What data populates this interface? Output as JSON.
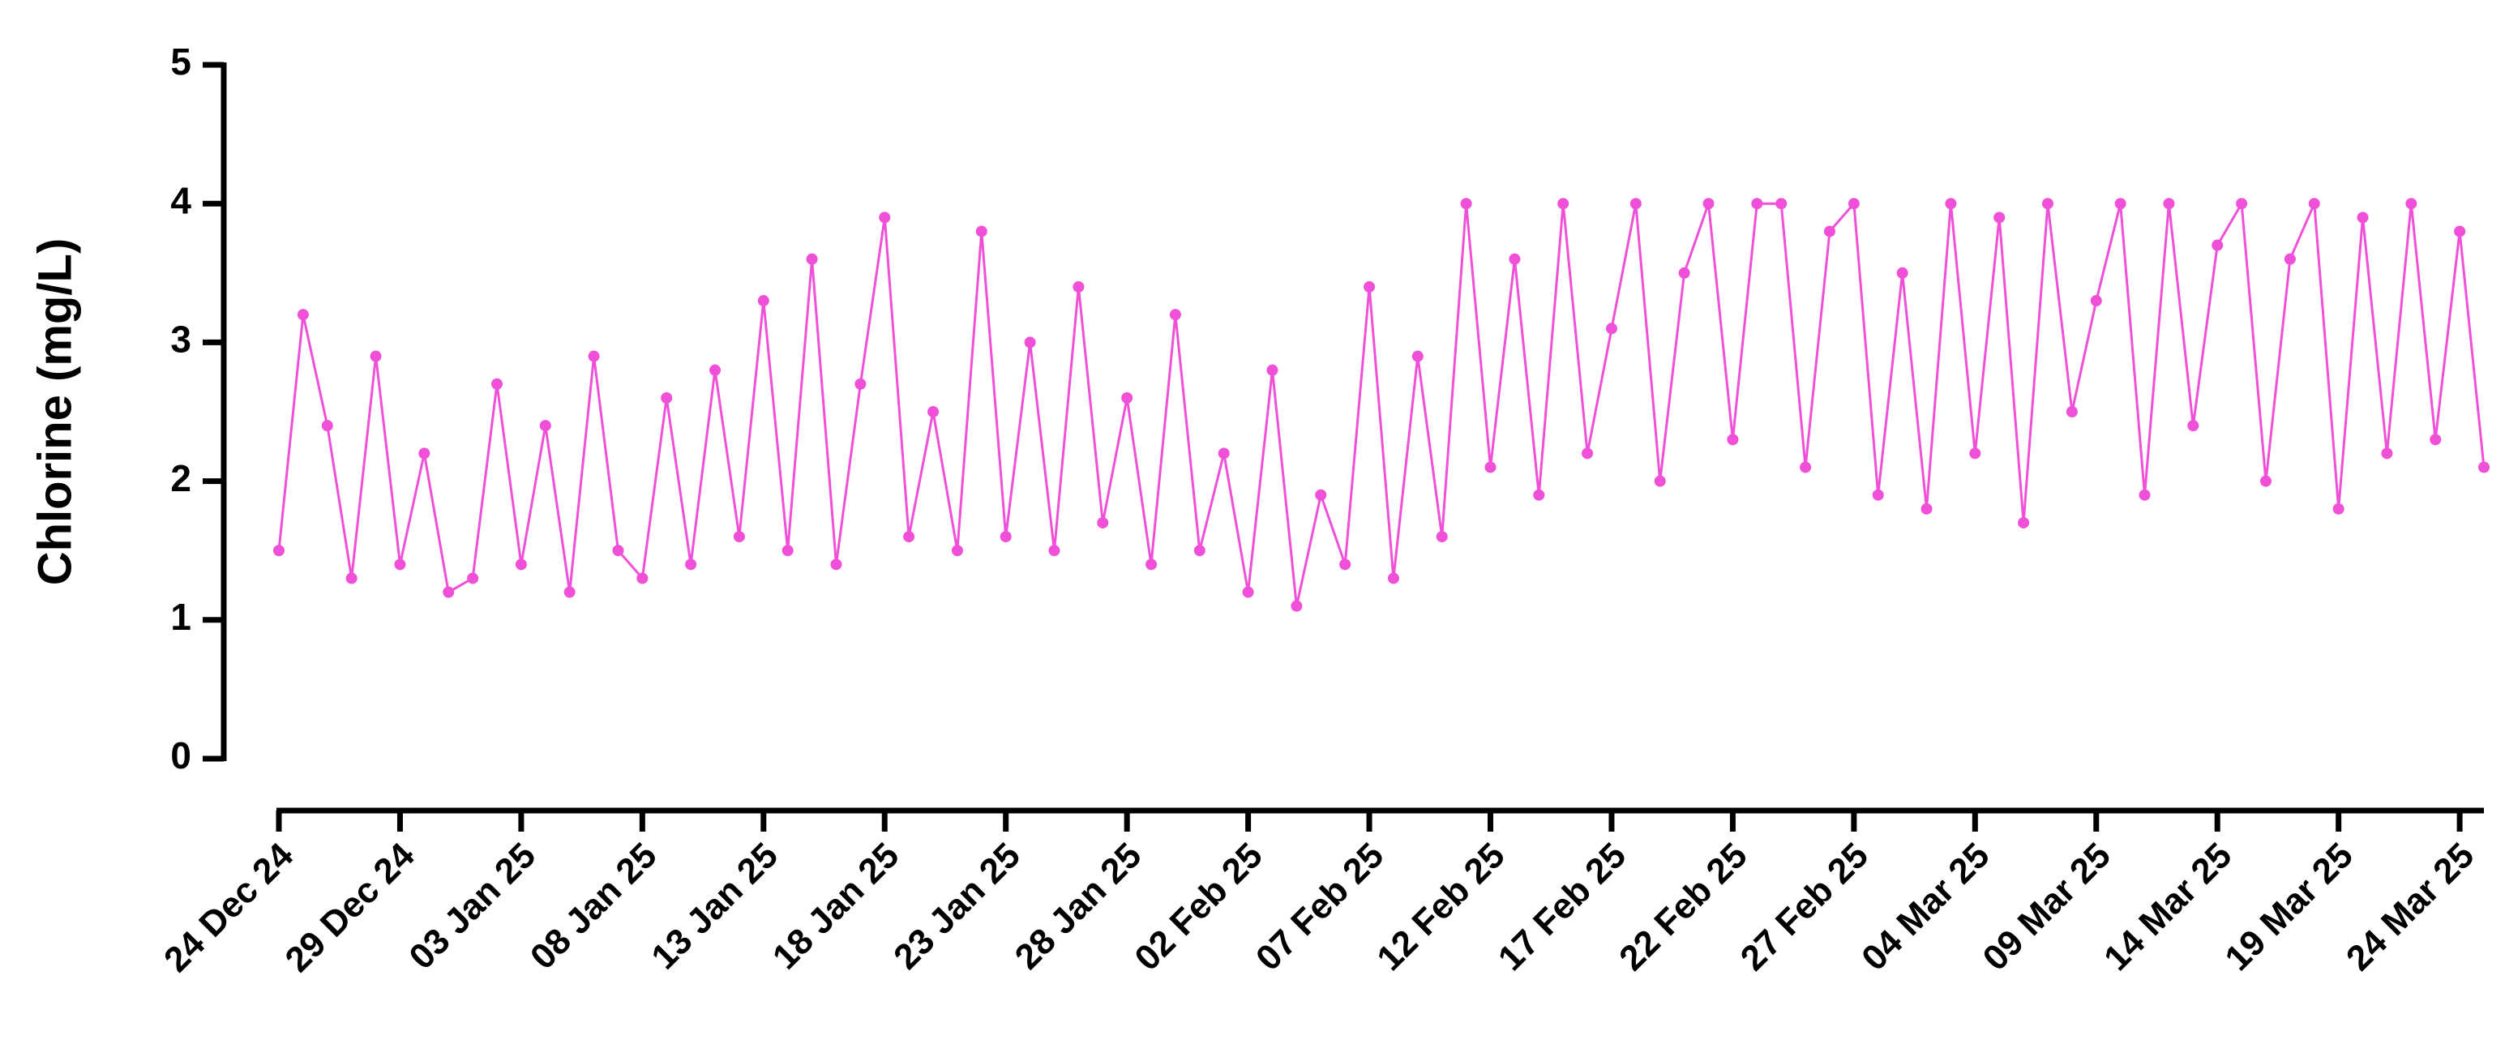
{
  "chart_data": {
    "type": "line",
    "y_label": "Chlorine (mg/L)",
    "color": "#f050d8",
    "x": [
      "24 Dec 24",
      "25 Dec 24",
      "26 Dec 24",
      "27 Dec 24",
      "28 Dec 24",
      "29 Dec 24",
      "30 Dec 24",
      "31 Dec 24",
      "01 Jan 25",
      "02 Jan 25",
      "03 Jan 25",
      "04 Jan 25",
      "05 Jan 25",
      "06 Jan 25",
      "07 Jan 25",
      "08 Jan 25",
      "09 Jan 25",
      "10 Jan 25",
      "11 Jan 25",
      "12 Jan 25",
      "13 Jan 25",
      "14 Jan 25",
      "15 Jan 25",
      "16 Jan 25",
      "17 Jan 25",
      "18 Jan 25",
      "19 Jan 25",
      "20 Jan 25",
      "21 Jan 25",
      "22 Jan 25",
      "23 Jan 25",
      "24 Jan 25",
      "25 Jan 25",
      "26 Jan 25",
      "27 Jan 25",
      "28 Jan 25",
      "29 Jan 25",
      "30 Jan 25",
      "31 Jan 25",
      "01 Feb 25",
      "02 Feb 25",
      "03 Feb 25",
      "04 Feb 25",
      "05 Feb 25",
      "06 Feb 25",
      "07 Feb 25",
      "08 Feb 25",
      "09 Feb 25",
      "10 Feb 25",
      "11 Feb 25",
      "12 Feb 25",
      "13 Feb 25",
      "14 Feb 25",
      "15 Feb 25",
      "16 Feb 25",
      "17 Feb 25",
      "18 Feb 25",
      "19 Feb 25",
      "20 Feb 25",
      "21 Feb 25",
      "22 Feb 25",
      "23 Feb 25",
      "24 Feb 25",
      "25 Feb 25",
      "26 Feb 25",
      "27 Feb 25",
      "28 Feb 25",
      "01 Mar 25",
      "02 Mar 25",
      "03 Mar 25",
      "04 Mar 25",
      "05 Mar 25",
      "06 Mar 25",
      "07 Mar 25",
      "08 Mar 25",
      "09 Mar 25",
      "10 Mar 25",
      "11 Mar 25",
      "12 Mar 25",
      "13 Mar 25",
      "14 Mar 25",
      "15 Mar 25",
      "16 Mar 25",
      "17 Mar 25",
      "18 Mar 25",
      "19 Mar 25",
      "20 Mar 25",
      "21 Mar 25",
      "22 Mar 25",
      "23 Mar 25",
      "24 Mar 25",
      "25 Mar 25"
    ],
    "values": [
      1.5,
      3.2,
      2.4,
      1.3,
      2.9,
      1.4,
      2.2,
      1.2,
      1.3,
      2.7,
      1.4,
      2.4,
      1.2,
      2.9,
      1.5,
      1.3,
      2.6,
      1.4,
      2.8,
      1.6,
      3.3,
      1.5,
      3.6,
      1.4,
      2.7,
      3.9,
      1.6,
      2.5,
      1.5,
      3.8,
      1.6,
      3.0,
      1.5,
      3.4,
      1.7,
      2.6,
      1.4,
      3.2,
      1.5,
      2.2,
      1.2,
      2.8,
      1.1,
      1.9,
      1.4,
      3.4,
      1.3,
      2.9,
      1.6,
      4.0,
      2.1,
      3.6,
      1.9,
      4.0,
      2.2,
      3.1,
      4.0,
      2.0,
      3.5,
      4.0,
      2.3,
      4.0,
      4.0,
      2.1,
      3.8,
      4.0,
      1.9,
      3.5,
      1.8,
      4.0,
      2.2,
      3.9,
      1.7,
      4.0,
      2.5,
      3.3,
      4.0,
      1.9,
      4.0,
      2.4,
      3.7,
      4.0,
      2.0,
      3.6,
      4.0,
      1.8,
      3.9,
      2.2,
      4.0,
      2.3,
      3.8,
      2.1
    ],
    "xlim": [
      "24 Dec 24",
      "25 Mar 25"
    ],
    "xticks": [
      "24 Dec 24",
      "29 Dec 24",
      "03 Jan 25",
      "08 Jan 25",
      "13 Jan 25",
      "18 Jan 25",
      "23 Jan 25",
      "28 Jan 25",
      "02 Feb 25",
      "07 Feb 25",
      "12 Feb 25",
      "17 Feb 25",
      "22 Feb 25",
      "27 Feb 25",
      "04 Mar 25",
      "09 Mar 25",
      "14 Mar 25",
      "19 Mar 25",
      "24 Mar 25"
    ],
    "ylim": [
      0,
      5
    ],
    "yticks": [
      0,
      1,
      2,
      3,
      4,
      5
    ]
  }
}
